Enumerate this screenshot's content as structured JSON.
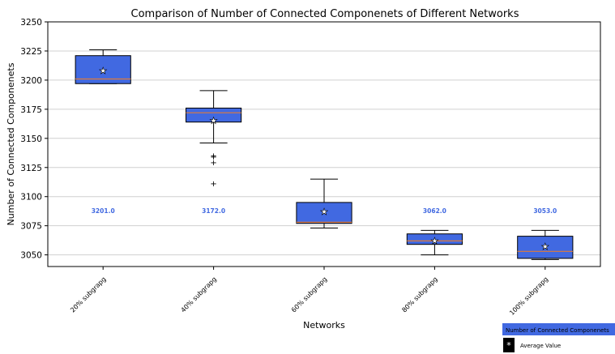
{
  "chart_data": {
    "type": "box",
    "title": "Comparison of Number of Connected Componenets of Different Networks",
    "xlabel": "Networks",
    "ylabel": "Number of Connected Componenets",
    "ylim": [
      3040,
      3250
    ],
    "yticks": [
      3050,
      3075,
      3100,
      3125,
      3150,
      3175,
      3200,
      3225,
      3250
    ],
    "grid": "horizontal",
    "categories": [
      "20% subgrapg",
      "40% subgrapg",
      "60% subgrapg",
      "80% subgrapg",
      "100% subgrapg"
    ],
    "boxes": [
      {
        "whisker_low": 3197,
        "q1": 3197,
        "median": 3201,
        "q3": 3221,
        "whisker_high": 3226,
        "mean": 3208,
        "outliers": []
      },
      {
        "whisker_low": 3146,
        "q1": 3164,
        "median": 3172,
        "q3": 3176,
        "whisker_high": 3191,
        "mean": 3165,
        "outliers": [
          3111,
          3129,
          3134,
          3135
        ]
      },
      {
        "whisker_low": 3073,
        "q1": 3077,
        "median": 3078,
        "q3": 3095,
        "whisker_high": 3115,
        "mean": 3087,
        "outliers": []
      },
      {
        "whisker_low": 3050,
        "q1": 3059,
        "median": 3062,
        "q3": 3068,
        "whisker_high": 3071,
        "mean": 3062,
        "outliers": []
      },
      {
        "whisker_low": 3046,
        "q1": 3047,
        "median": 3053,
        "q3": 3066,
        "whisker_high": 3071,
        "mean": 3057,
        "outliers": []
      }
    ],
    "median_labels": [
      "3201.0",
      "3172.0",
      "",
      "3062.0",
      "3053.0"
    ],
    "median_label_y": 3088,
    "legend": {
      "placement": "bottom-right-outside",
      "entries": [
        "Number of Connected Componenets",
        "Average Value"
      ]
    },
    "colors": {
      "box_fill": "#4169e1",
      "median_line": "#e07b39",
      "label_text": "#4169e1",
      "grid": "#d0d0d0"
    }
  }
}
